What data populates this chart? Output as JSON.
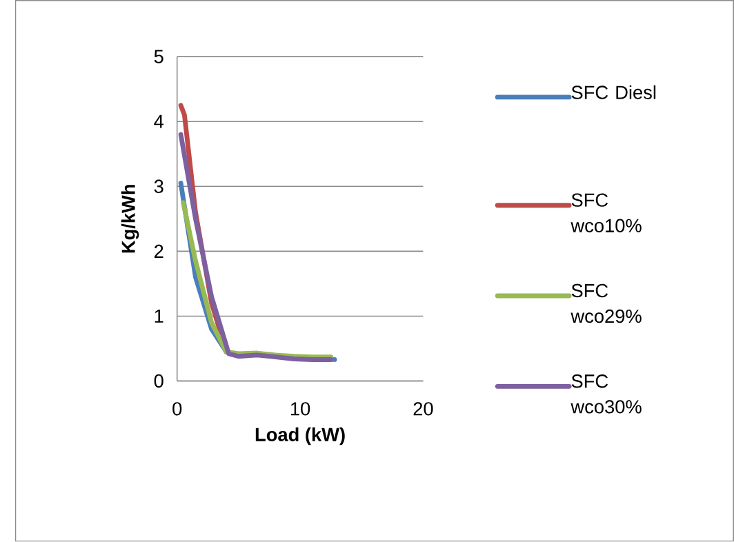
{
  "chart_data": {
    "type": "line",
    "xlabel": "Load (kW)",
    "ylabel": "Kg/kWh",
    "xlim": [
      0,
      20
    ],
    "xticks": [
      0,
      10,
      20
    ],
    "ylim": [
      0,
      5
    ],
    "yticks": [
      0,
      1,
      2,
      3,
      4,
      5
    ],
    "grid": "y",
    "legend": "right",
    "marker": "none",
    "line_style": "solid",
    "series": [
      {
        "name": "SFC Diesl",
        "color": "#4a7ebb",
        "x": [
          0.3,
          1.5,
          2.8,
          4,
          5,
          6.5,
          8,
          9.5,
          11,
          12.8
        ],
        "values": [
          3.05,
          1.6,
          0.8,
          0.45,
          0.4,
          0.42,
          0.38,
          0.36,
          0.35,
          0.33
        ]
      },
      {
        "name": "SFC wco10%",
        "color": "#be4b48",
        "x": [
          0.3,
          0.6,
          1.5,
          2.8,
          4
        ],
        "values": [
          4.25,
          4.1,
          2.6,
          1.2,
          0.45
        ]
      },
      {
        "name": "SFC wco29%",
        "color": "#98b954",
        "x": [
          0.5,
          1.5,
          2.8,
          4,
          5,
          6.5,
          8,
          9.5,
          11,
          12.5
        ],
        "values": [
          2.75,
          1.85,
          0.9,
          0.45,
          0.42,
          0.43,
          0.4,
          0.38,
          0.37,
          0.37
        ]
      },
      {
        "name": "SFC wco30%",
        "color": "#7d60a0",
        "x": [
          0.3,
          1.5,
          2.8,
          4.2,
          5,
          6.5,
          8,
          9.5,
          11,
          12.5
        ],
        "values": [
          3.8,
          2.5,
          1.3,
          0.42,
          0.38,
          0.4,
          0.37,
          0.34,
          0.33,
          0.33
        ]
      }
    ]
  }
}
